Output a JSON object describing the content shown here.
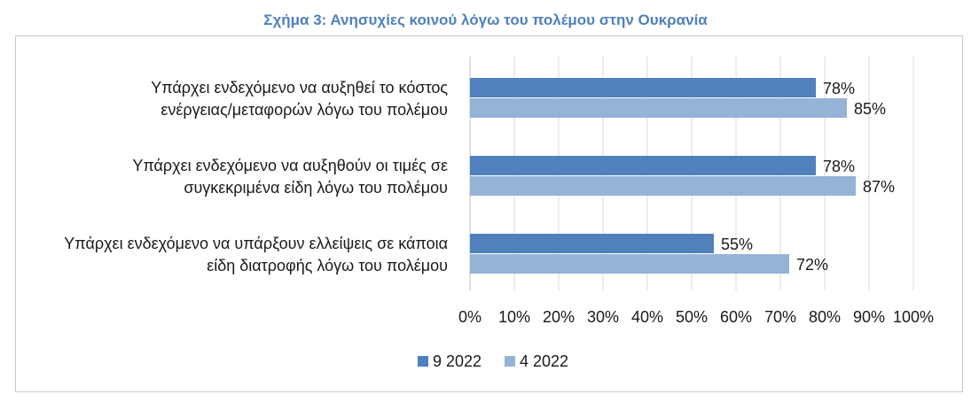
{
  "title": "Σχήμα 3: Ανησυχίες κοινού λόγω του πολέμου στην Ουκρανία",
  "colors": {
    "title": "#4f81bd",
    "series_9_2022": "#4f81bd",
    "series_4_2022": "#95b3d7",
    "grid": "#d9d9d9"
  },
  "chart_data": {
    "type": "bar",
    "orientation": "horizontal",
    "categories": [
      [
        "Υπάρχει ενδεχόμενο να αυξηθεί το κόστος",
        "ενέργειας/μεταφορών λόγω του πολέμου"
      ],
      [
        "Υπάρχει ενδεχόμενο να αυξηθούν οι τιμές σε",
        "συγκεκριμένα είδη λόγω του πολέμου"
      ],
      [
        "Υπάρχει ενδεχόμενο να υπάρξουν ελλείψεις σε κάποια",
        "είδη διατροφής λόγω του πολέμου"
      ]
    ],
    "series": [
      {
        "name": "9 2022",
        "values": [
          78,
          78,
          55
        ]
      },
      {
        "name": "4 2022",
        "values": [
          85,
          87,
          72
        ]
      }
    ],
    "xlim": [
      0,
      100
    ],
    "xticks": [
      "0%",
      "10%",
      "20%",
      "30%",
      "40%",
      "50%",
      "60%",
      "70%",
      "80%",
      "90%",
      "100%"
    ],
    "value_suffix": "%",
    "grid": true,
    "legend_position": "bottom"
  }
}
